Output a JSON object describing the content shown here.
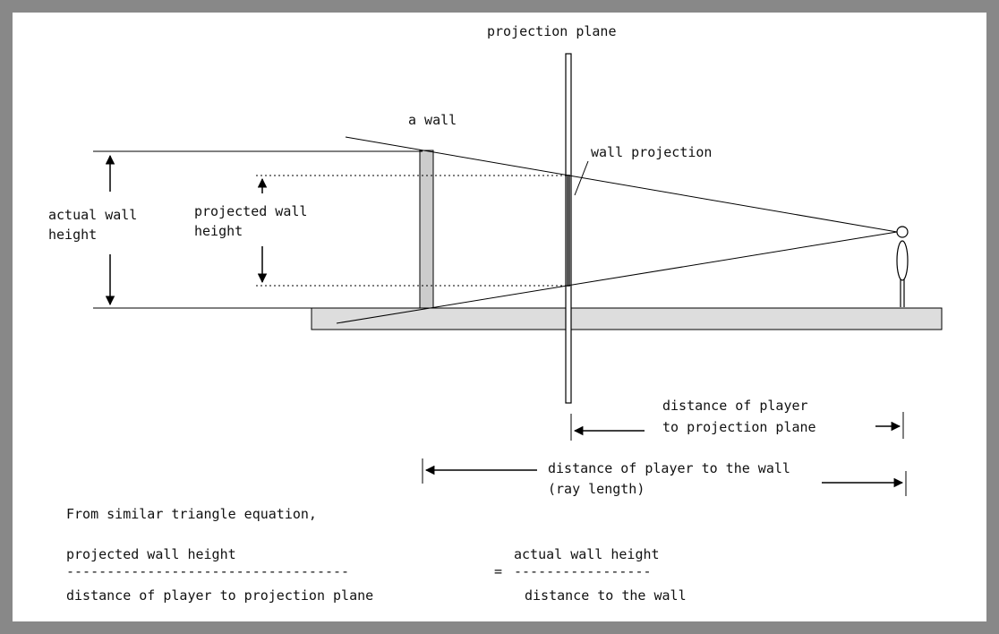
{
  "labels": {
    "projection_plane": "projection plane",
    "a_wall": "a wall",
    "wall_projection": "wall projection",
    "actual_wall_height_1": "actual wall",
    "actual_wall_height_2": "height",
    "projected_wall_height_1": "projected wall",
    "projected_wall_height_2": "height",
    "dist_player_projection_1": "distance of player",
    "dist_player_projection_2": "to projection plane",
    "dist_player_wall_1": "distance of player to the wall",
    "dist_player_wall_2": "(ray length)"
  },
  "equation": {
    "intro": "From similar triangle equation,",
    "numerator_left": "projected wall height",
    "numerator_right": "actual wall height",
    "divider_left": "-----------------------------------",
    "equals": "=",
    "divider_right": "-----------------",
    "denominator_left": "distance of player to projection plane",
    "denominator_right": "distance to the wall"
  },
  "colors": {
    "frame": "#888888",
    "floor": "#dddddd",
    "wall": "#cccccc",
    "line": "#000000"
  }
}
